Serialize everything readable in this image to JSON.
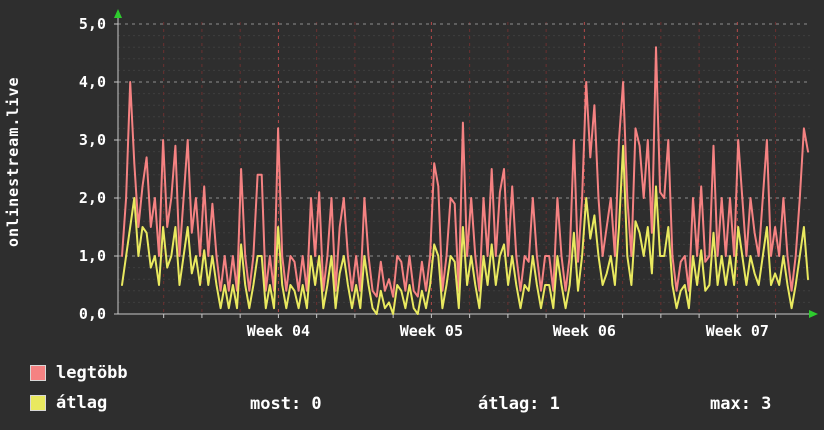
{
  "title": "onlinestream.live",
  "colors": {
    "bg": "#2e2e2e",
    "text": "#ffffff",
    "max_line": "#f58282",
    "avg_line": "#e9e95f",
    "grid_major_h": "#8f8f8f",
    "grid_minor_h": "#3e3e3e",
    "grid_week_v": "#b64a4a",
    "grid_minor_v": "#6b3030",
    "axis": "#c8c8c8",
    "arrow": "#2ecc2e"
  },
  "y_axis": {
    "ticks": [
      {
        "label": "5,0",
        "value": 5
      },
      {
        "label": "4,0",
        "value": 4
      },
      {
        "label": "3,0",
        "value": 3
      },
      {
        "label": "2,0",
        "value": 2
      },
      {
        "label": "1,0",
        "value": 1
      },
      {
        "label": "0,0",
        "value": 0
      }
    ],
    "max": 5
  },
  "x_axis": {
    "weeks": [
      {
        "label": "Week 04",
        "pos": 0.228
      },
      {
        "label": "Week 05",
        "pos": 0.451
      },
      {
        "label": "Week 06",
        "pos": 0.674
      },
      {
        "label": "Week 07",
        "pos": 0.897
      }
    ]
  },
  "legend": [
    {
      "label": "legtöbb",
      "color_key": "max_line"
    },
    {
      "label": "átlag",
      "color_key": "avg_line"
    }
  ],
  "stats": [
    {
      "text": "most: 0"
    },
    {
      "text": "átlag: 1"
    },
    {
      "text": "max: 3"
    }
  ],
  "chart_data": {
    "type": "line",
    "title": "onlinestream.live",
    "xlabel": "",
    "ylabel": "",
    "ylim": [
      0,
      5
    ],
    "grid": true,
    "legend_position": "bottom-left",
    "x_tick_labels": [
      "Week 04",
      "Week 05",
      "Week 06",
      "Week 07"
    ],
    "series": [
      {
        "name": "legtöbb",
        "color": "#f58282",
        "values": [
          1.0,
          2.0,
          4.0,
          2.6,
          1.5,
          2.2,
          2.7,
          1.5,
          2.0,
          1.0,
          3.0,
          1.5,
          2.0,
          2.9,
          1.0,
          2.0,
          3.0,
          1.4,
          2.0,
          1.0,
          2.2,
          1.0,
          1.9,
          1.0,
          0.4,
          1.0,
          0.4,
          1.0,
          0.4,
          2.5,
          1.0,
          0.4,
          1.0,
          2.4,
          2.4,
          0.4,
          1.0,
          0.4,
          3.2,
          1.0,
          0.4,
          1.0,
          0.9,
          0.4,
          1.0,
          0.4,
          2.0,
          1.0,
          2.1,
          0.4,
          1.0,
          2.0,
          0.4,
          1.5,
          2.0,
          1.0,
          0.4,
          1.0,
          0.4,
          2.0,
          1.0,
          0.4,
          0.3,
          0.9,
          0.4,
          0.6,
          0.3,
          1.0,
          0.9,
          0.4,
          1.0,
          0.4,
          0.3,
          0.9,
          0.4,
          1.0,
          2.6,
          2.2,
          0.4,
          1.0,
          2.0,
          1.9,
          0.4,
          3.3,
          1.0,
          2.0,
          1.0,
          0.4,
          2.0,
          1.0,
          2.5,
          1.0,
          2.1,
          2.5,
          1.0,
          2.2,
          1.0,
          0.4,
          1.0,
          0.9,
          2.0,
          1.0,
          0.4,
          1.0,
          1.0,
          0.4,
          2.0,
          1.0,
          0.4,
          1.0,
          3.0,
          0.9,
          2.0,
          4.0,
          2.7,
          3.6,
          2.0,
          1.0,
          1.5,
          2.0,
          1.0,
          3.0,
          4.0,
          2.0,
          1.0,
          3.2,
          2.9,
          2.0,
          3.0,
          1.4,
          4.6,
          2.1,
          2.0,
          3.0,
          1.0,
          0.4,
          0.9,
          1.0,
          0.4,
          2.0,
          1.0,
          2.2,
          0.9,
          1.0,
          2.9,
          1.0,
          2.0,
          1.0,
          2.0,
          1.0,
          3.0,
          2.0,
          1.0,
          2.0,
          1.4,
          1.0,
          2.0,
          3.0,
          1.0,
          1.5,
          1.0,
          2.0,
          1.0,
          0.4,
          1.0,
          2.0,
          3.2,
          2.8
        ]
      },
      {
        "name": "átlag",
        "color": "#e9e95f",
        "values": [
          0.5,
          1.0,
          1.5,
          2.0,
          1.0,
          1.5,
          1.4,
          0.8,
          1.0,
          0.5,
          1.5,
          0.8,
          1.0,
          1.5,
          0.5,
          1.0,
          1.5,
          0.7,
          1.0,
          0.5,
          1.1,
          0.5,
          1.0,
          0.5,
          0.1,
          0.5,
          0.1,
          0.5,
          0.1,
          1.2,
          0.5,
          0.1,
          0.5,
          1.0,
          1.0,
          0.1,
          0.5,
          0.1,
          1.5,
          0.5,
          0.1,
          0.5,
          0.4,
          0.1,
          0.5,
          0.1,
          1.0,
          0.5,
          1.0,
          0.1,
          0.5,
          1.0,
          0.1,
          0.7,
          1.0,
          0.5,
          0.1,
          0.5,
          0.1,
          1.0,
          0.5,
          0.1,
          0.0,
          0.4,
          0.1,
          0.2,
          0.0,
          0.5,
          0.4,
          0.1,
          0.5,
          0.1,
          0.0,
          0.4,
          0.1,
          0.5,
          1.2,
          1.0,
          0.1,
          0.5,
          1.0,
          0.9,
          0.1,
          1.5,
          0.5,
          1.0,
          0.5,
          0.1,
          1.0,
          0.5,
          1.2,
          0.5,
          1.0,
          1.2,
          0.5,
          1.0,
          0.5,
          0.1,
          0.5,
          0.4,
          1.0,
          0.5,
          0.1,
          0.5,
          0.5,
          0.1,
          1.0,
          0.5,
          0.1,
          0.5,
          1.4,
          0.4,
          1.0,
          2.0,
          1.3,
          1.7,
          1.0,
          0.5,
          0.7,
          1.0,
          0.5,
          1.5,
          2.9,
          1.0,
          0.5,
          1.6,
          1.4,
          1.0,
          1.5,
          0.7,
          2.2,
          1.0,
          1.0,
          1.5,
          0.5,
          0.1,
          0.4,
          0.5,
          0.1,
          1.0,
          0.5,
          1.1,
          0.4,
          0.5,
          1.4,
          0.5,
          1.0,
          0.5,
          1.0,
          0.5,
          1.5,
          1.0,
          0.5,
          1.0,
          0.7,
          0.5,
          1.0,
          1.5,
          0.5,
          0.7,
          0.5,
          1.0,
          0.5,
          0.1,
          0.5,
          1.0,
          1.5,
          0.6
        ]
      }
    ],
    "stats_row": {
      "most": 0,
      "atlag": 1,
      "max": 3
    }
  }
}
